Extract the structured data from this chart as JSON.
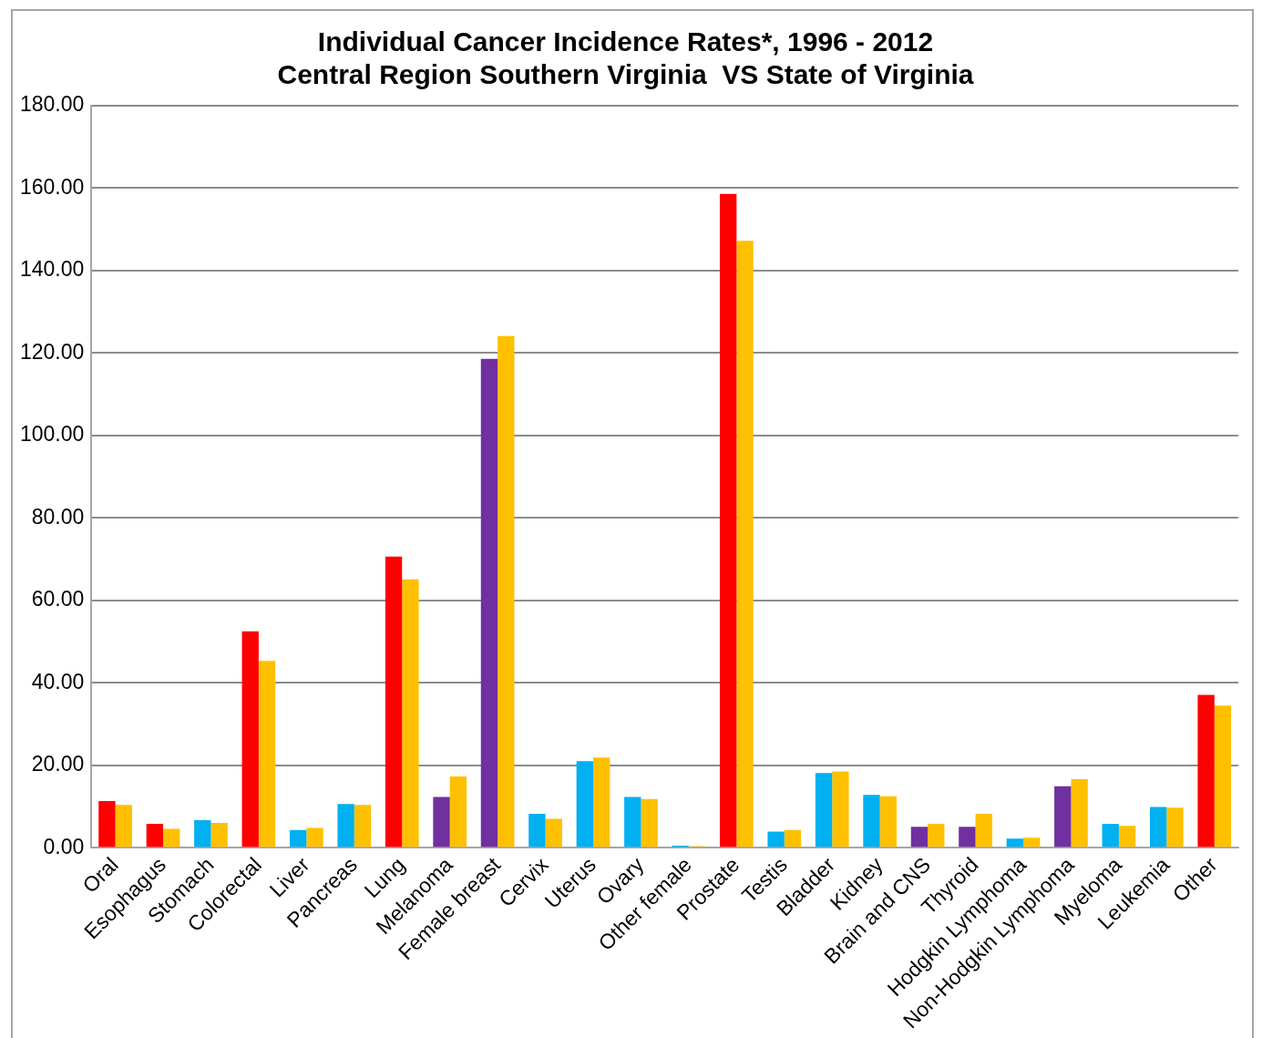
{
  "chart_data": {
    "type": "bar",
    "title": "Individual Cancer Incidence Rates*, 1996 - 2012",
    "subtitle": "Central Region Southern Virginia  VS State of Virginia",
    "categories": [
      "Oral",
      "Esophagus",
      "Stomach",
      "Colorectal",
      "Liver",
      "Pancreas",
      "Lung",
      "Melanoma",
      "Female breast",
      "Cervix",
      "Uterus",
      "Ovary",
      "Other female",
      "Prostate",
      "Testis",
      "Bladder",
      "Kidney",
      "Brain and CNS",
      "Thyroid",
      "Hodgkin Lymphoma",
      "Non-Hodgkin Lymphoma",
      "Myeloma",
      "Leukemia",
      "Other"
    ],
    "series": [
      {
        "colors": [
          "#ff0000",
          "#ff0000",
          "#00b0f0",
          "#ff0000",
          "#00b0f0",
          "#00b0f0",
          "#ff0000",
          "#7030a0",
          "#7030a0",
          "#00b0f0",
          "#00b0f0",
          "#00b0f0",
          "#00b0f0",
          "#ff0000",
          "#00b0f0",
          "#00b0f0",
          "#00b0f0",
          "#7030a0",
          "#7030a0",
          "#00b0f0",
          "#7030a0",
          "#00b0f0",
          "#00b0f0",
          "#ff0000"
        ],
        "values": [
          11.3,
          5.8,
          6.7,
          52.5,
          4.3,
          10.6,
          70.6,
          12.3,
          118.6,
          8.2,
          21.0,
          12.3,
          0.5,
          158.6,
          3.9,
          18.1,
          12.8,
          5.1,
          5.1,
          2.2,
          14.9,
          5.8,
          9.9,
          37.1
        ]
      },
      {
        "color": "#ffc000",
        "values": [
          10.4,
          4.6,
          6.0,
          45.3,
          4.8,
          10.4,
          65.1,
          17.3,
          124.1,
          7.0,
          21.9,
          11.8,
          0.4,
          147.2,
          4.3,
          18.5,
          12.5,
          5.8,
          8.2,
          2.4,
          16.6,
          5.3,
          9.7,
          34.5
        ]
      }
    ],
    "ylim": [
      0,
      180
    ],
    "yticks": [
      {
        "value": 0,
        "label": "0.00"
      },
      {
        "value": 20,
        "label": "20.00"
      },
      {
        "value": 40,
        "label": "40.00"
      },
      {
        "value": 60,
        "label": "60.00"
      },
      {
        "value": 80,
        "label": "80.00"
      },
      {
        "value": 100,
        "label": "100.00"
      },
      {
        "value": 120,
        "label": "120.00"
      },
      {
        "value": 140,
        "label": "140.00"
      },
      {
        "value": 160,
        "label": "160.00"
      },
      {
        "value": 180,
        "label": "180.00"
      }
    ],
    "grid": "y",
    "legend": false
  }
}
